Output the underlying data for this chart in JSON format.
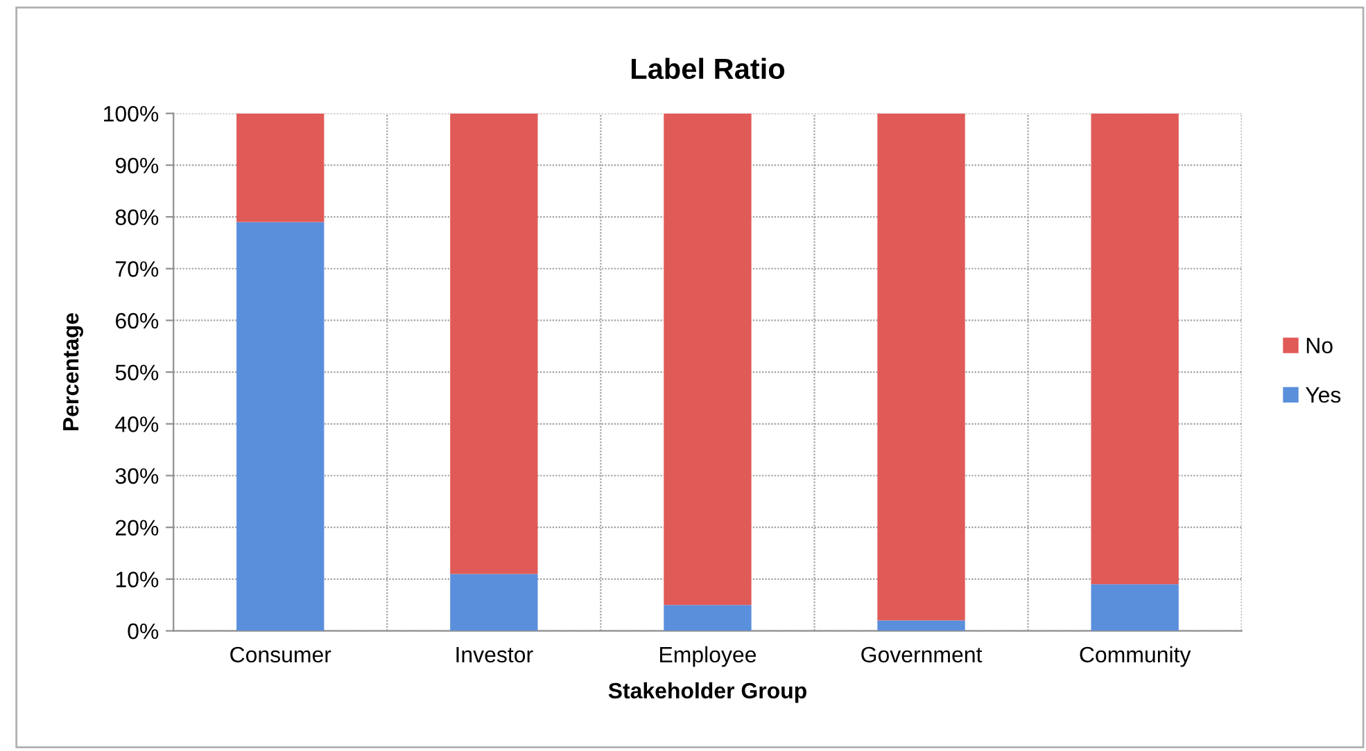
{
  "chart_data": {
    "type": "bar",
    "title": "Label Ratio",
    "xlabel": "Stakeholder Group",
    "ylabel": "Percentage",
    "categories": [
      "Consumer",
      "Investor",
      "Employee",
      "Government",
      "Community"
    ],
    "stacked": true,
    "series": [
      {
        "name": "Yes",
        "color": "#5a8fdc",
        "values": [
          79,
          11,
          5,
          2,
          9
        ]
      },
      {
        "name": "No",
        "color": "#e05a57",
        "values": [
          21,
          89,
          95,
          98,
          91
        ]
      }
    ],
    "ylim": [
      0,
      100
    ],
    "yticks": [
      {
        "value": 0,
        "label": "0%"
      },
      {
        "value": 10,
        "label": "10%"
      },
      {
        "value": 20,
        "label": "20%"
      },
      {
        "value": 30,
        "label": "30%"
      },
      {
        "value": 40,
        "label": "40%"
      },
      {
        "value": 50,
        "label": "50%"
      },
      {
        "value": 60,
        "label": "60%"
      },
      {
        "value": 70,
        "label": "70%"
      },
      {
        "value": 80,
        "label": "80%"
      },
      {
        "value": 90,
        "label": "90%"
      },
      {
        "value": 100,
        "label": "100%"
      }
    ],
    "grid": true,
    "legend": "right"
  }
}
